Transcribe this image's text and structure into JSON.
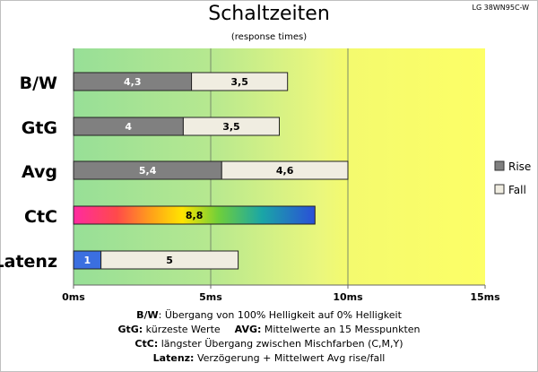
{
  "title": "Schaltzeiten",
  "subtitle": "(response times)",
  "model": "LG 38WN95C-W",
  "footnotes": {
    "line1_key": "B/W",
    "line1_text": ":  Übergang von 100% Helligkeit auf 0% Helligkeit",
    "line2a_key": "GtG:",
    "line2a_text": " kürzeste  Werte",
    "line2b_key": "AVG:",
    "line2b_text": "  Mittelwerte  an 15  Messpunkten",
    "line3_key": "CtC:",
    "line3_text": " längster Übergang  zwischen Mischfarben (C,M,Y)",
    "line4_key": "Latenz:",
    "line4_text": " Verzögerung  + Mittelwert  Avg rise/fall"
  },
  "chart_data": {
    "type": "bar",
    "orientation": "horizontal",
    "stacked": true,
    "categories": [
      "B/W",
      "GtG",
      "Avg",
      "CtC",
      "Latenz"
    ],
    "series": [
      {
        "name": "Rise",
        "color": "#808080",
        "values": [
          4.3,
          4,
          5.4,
          null,
          null
        ]
      },
      {
        "name": "Fall",
        "color": "#f0ede1",
        "values": [
          3.5,
          3.5,
          4.6,
          null,
          null
        ]
      }
    ],
    "special_bars": [
      {
        "category": "CtC",
        "value": 8.8,
        "label": "8,8",
        "fill": "rainbow-gradient"
      },
      {
        "category": "Latenz",
        "segments": [
          {
            "value": 1,
            "label": "1",
            "color": "#3b6fe0"
          },
          {
            "value": 5,
            "label": "5",
            "color": "#f0ede1"
          }
        ]
      }
    ],
    "data_labels": {
      "B/W": [
        "4,3",
        "3,5"
      ],
      "GtG": [
        "4",
        "3,5"
      ],
      "Avg": [
        "5,4",
        "4,6"
      ]
    },
    "xlim": [
      0,
      15
    ],
    "xticks": [
      "0ms",
      "5ms",
      "10ms",
      "15ms"
    ],
    "background_zones": "gradient green (0ms) to yellow (10-15ms)",
    "legend_position": "right",
    "legend": [
      {
        "label": "Rise",
        "color": "#808080"
      },
      {
        "label": "Fall",
        "color": "#f0ede1"
      }
    ]
  }
}
